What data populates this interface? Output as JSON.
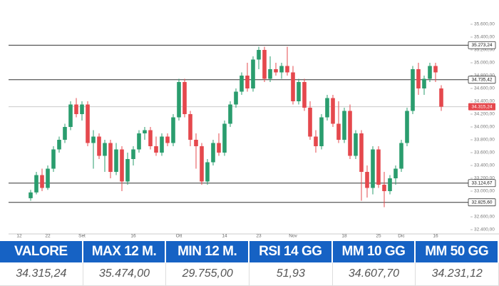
{
  "chart_data": {
    "type": "candlestick",
    "up_color": "#2a9d6e",
    "down_color": "#e5484d",
    "categories": [
      "12",
      null,
      null,
      null,
      null,
      "22",
      null,
      null,
      null,
      null,
      null,
      "Set",
      null,
      null,
      null,
      null,
      null,
      null,
      null,
      null,
      "16",
      null,
      null,
      null,
      null,
      null,
      null,
      null,
      "Ott",
      null,
      null,
      null,
      null,
      null,
      null,
      null,
      "14",
      null,
      null,
      null,
      null,
      null,
      "23",
      null,
      null,
      null,
      null,
      null,
      "Nov",
      null,
      null,
      null,
      null,
      null,
      null,
      null,
      null,
      "18",
      null,
      null,
      null,
      null,
      null,
      "25",
      null,
      null,
      null,
      "Dic",
      null,
      null,
      null,
      null,
      null,
      "16",
      null
    ],
    "values": [
      null,
      null,
      [
        32890,
        33020,
        32850,
        32980
      ],
      [
        32980,
        33300,
        32950,
        33250
      ],
      [
        33250,
        33350,
        33000,
        33050
      ],
      [
        33050,
        33400,
        33020,
        33350
      ],
      [
        33350,
        33700,
        33300,
        33650
      ],
      [
        33650,
        33850,
        33600,
        33800
      ],
      [
        33800,
        34050,
        33750,
        34000
      ],
      [
        34000,
        34400,
        33950,
        34350
      ],
      [
        34350,
        34450,
        34150,
        34200
      ],
      [
        34200,
        34400,
        34100,
        34350
      ],
      [
        34350,
        34400,
        33700,
        33750
      ],
      [
        33750,
        33950,
        33350,
        33850
      ],
      [
        33850,
        33900,
        33500,
        33550
      ],
      [
        33550,
        33800,
        33300,
        33750
      ],
      [
        33750,
        33800,
        33200,
        33300
      ],
      [
        33300,
        33750,
        33250,
        33650
      ],
      [
        33650,
        33700,
        33000,
        33150
      ],
      [
        33150,
        33600,
        33100,
        33500
      ],
      [
        33500,
        33700,
        33400,
        33650
      ],
      [
        33650,
        33950,
        33600,
        33900
      ],
      [
        33900,
        34000,
        33800,
        33950
      ],
      [
        33950,
        34000,
        33650,
        33700
      ],
      [
        33700,
        33850,
        33550,
        33600
      ],
      [
        33600,
        33900,
        33550,
        33850
      ],
      [
        33850,
        33900,
        33700,
        33750
      ],
      [
        33750,
        34200,
        33700,
        34150
      ],
      [
        34150,
        34750,
        34100,
        34700
      ],
      [
        34700,
        34750,
        34150,
        34200
      ],
      [
        34200,
        34250,
        33700,
        33800
      ],
      [
        33800,
        33900,
        33350,
        33700
      ],
      [
        33700,
        33750,
        33100,
        33150
      ],
      [
        33150,
        33500,
        33100,
        33450
      ],
      [
        33450,
        33800,
        33400,
        33750
      ],
      [
        33750,
        33900,
        33550,
        33600
      ],
      [
        33600,
        34100,
        33550,
        34050
      ],
      [
        34050,
        34400,
        34000,
        34350
      ],
      [
        34350,
        34600,
        34300,
        34550
      ],
      [
        34550,
        34850,
        34500,
        34800
      ],
      [
        34800,
        35000,
        34550,
        34600
      ],
      [
        34600,
        35100,
        34550,
        35050
      ],
      [
        35050,
        35250,
        34900,
        35200
      ],
      [
        35200,
        35250,
        34700,
        34750
      ],
      [
        34750,
        35100,
        34700,
        34900
      ],
      [
        34900,
        35000,
        34800,
        34850
      ],
      [
        34850,
        35000,
        34750,
        34950
      ],
      [
        34950,
        35250,
        34800,
        34850
      ],
      [
        34850,
        34950,
        34350,
        34400
      ],
      [
        34400,
        34750,
        34350,
        34700
      ],
      [
        34700,
        34750,
        34250,
        34300
      ],
      [
        34300,
        34400,
        33800,
        33850
      ],
      [
        33850,
        33950,
        33600,
        33700
      ],
      [
        33700,
        34200,
        33650,
        34150
      ],
      [
        34150,
        34500,
        34100,
        34450
      ],
      [
        34450,
        34500,
        34000,
        34050
      ],
      [
        34050,
        34400,
        33750,
        33800
      ],
      [
        33800,
        34300,
        33750,
        34250
      ],
      [
        34250,
        34350,
        33500,
        33550
      ],
      [
        33550,
        33950,
        33500,
        33900
      ],
      [
        33900,
        33950,
        32850,
        33300
      ],
      [
        33300,
        33400,
        32900,
        33050
      ],
      [
        33050,
        33700,
        32950,
        33650
      ],
      [
        33650,
        33700,
        33050,
        33100
      ],
      [
        33100,
        33300,
        32750,
        33000
      ],
      [
        33000,
        33250,
        32950,
        33200
      ],
      [
        33200,
        33400,
        33100,
        33350
      ],
      [
        33350,
        33800,
        33300,
        33750
      ],
      [
        33750,
        34300,
        33700,
        34250
      ],
      [
        34250,
        34950,
        34200,
        34900
      ],
      [
        34900,
        35000,
        34500,
        34600
      ],
      [
        34600,
        34800,
        34500,
        34750
      ],
      [
        34750,
        35000,
        34700,
        34950
      ],
      [
        34950,
        35000,
        34700,
        34850
      ],
      [
        34600,
        34650,
        34250,
        34315.24
      ]
    ],
    "ylim": [
      32400,
      35600
    ],
    "yticks": [
      {
        "value": 32400,
        "label": "32.400,00"
      },
      {
        "value": 32600,
        "label": "32.600,00"
      },
      {
        "value": 32800,
        "label": "32.800,00"
      },
      {
        "value": 33000,
        "label": "33.000,00"
      },
      {
        "value": 33200,
        "label": "33.200,00"
      },
      {
        "value": 33400,
        "label": "33.400,00"
      },
      {
        "value": 33600,
        "label": "33.600,00"
      },
      {
        "value": 33800,
        "label": "33.800,00"
      },
      {
        "value": 34000,
        "label": "34.000,00"
      },
      {
        "value": 34200,
        "label": "34.200,00"
      },
      {
        "value": 34400,
        "label": "34.400,00"
      },
      {
        "value": 34600,
        "label": "34.600,00"
      },
      {
        "value": 34800,
        "label": "34.800,00"
      },
      {
        "value": 35000,
        "label": "35.000,00"
      },
      {
        "value": 35200,
        "label": "35.200,00"
      },
      {
        "value": 35400,
        "label": "35.400,00"
      },
      {
        "value": 35600,
        "label": "35.600,00"
      }
    ],
    "levels": [
      {
        "value": 35273.24,
        "label": "35.273,24"
      },
      {
        "value": 34735.42,
        "label": "34.735,42"
      },
      {
        "value": 33124.67,
        "label": "33.124,67"
      },
      {
        "value": 32825.6,
        "label": "32.825,60"
      }
    ],
    "current_price": {
      "value": 34315.24,
      "label": "34.315,24"
    }
  },
  "table": {
    "headers": [
      "VALORE",
      "MAX 12 M.",
      "MIN 12 M.",
      "RSI 14 GG",
      "MM 10 GG",
      "MM 50 GG"
    ],
    "row": [
      "34.315,24",
      "35.474,00",
      "29.755,00",
      "51,93",
      "34.607,70",
      "34.231,12"
    ]
  }
}
